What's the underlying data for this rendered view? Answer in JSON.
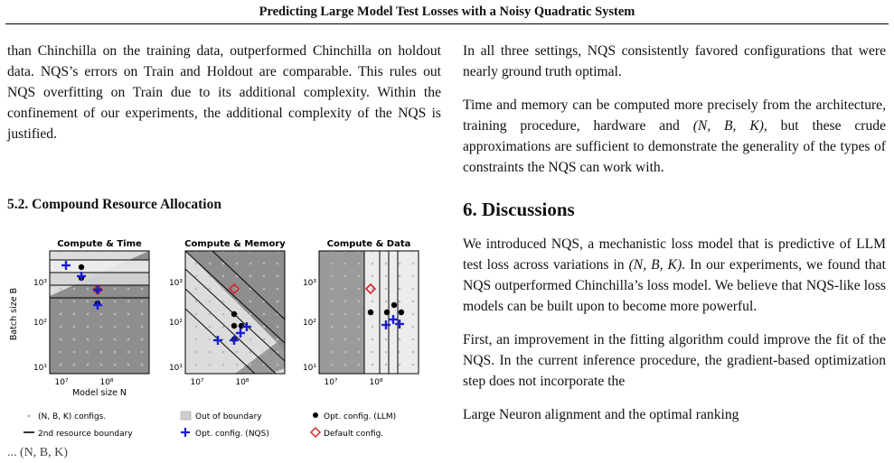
{
  "header": {
    "title": "Predicting Large Model Test Losses with a Noisy Quadratic System"
  },
  "left_column": {
    "paragraph_1": "than Chinchilla on the training data, outperformed Chinchilla on holdout data. NQS’s errors on Train and Holdout are comparable. This rules out NQS overfitting on Train due to its additional complexity. Within the confinement of our experiments, the additional complexity of the NQS is justified.",
    "section_heading": "5.2. Compound Resource Allocation"
  },
  "figure": {
    "panels": [
      {
        "title": "Compute & Time"
      },
      {
        "title": "Compute & Memory"
      },
      {
        "title": "Compute & Data"
      }
    ],
    "ylabel": "Batch size B",
    "xlabel": "Model size N",
    "y_ticks": [
      "10³",
      "10²",
      "10¹"
    ],
    "x_ticks": [
      "10⁷",
      "10⁸"
    ],
    "legend": [
      {
        "label": "(N, B, K) configs.",
        "marker": "dot-gray"
      },
      {
        "label": "Out of boundary",
        "marker": "gray-square"
      },
      {
        "label": "Opt. config. (LLM)",
        "marker": "black-dot"
      },
      {
        "label": "2nd resource boundary",
        "marker": "black-line"
      },
      {
        "label": "Opt. config. (NQS)",
        "marker": "blue-plus"
      },
      {
        "label": "Default config.",
        "marker": "red-diamond"
      }
    ],
    "colors": {
      "nqs": "#1c1cd6",
      "default": "#d62728",
      "llm": "#000000",
      "grid_dot": "#bbbbbb",
      "shade": "#9a9a9a"
    },
    "caption_fragment": "... (N, B, K)"
  },
  "right_column": {
    "paragraph_1": "In all three settings, NQS consistently favored configurations that were nearly ground truth optimal.",
    "paragraph_2_pre": "Time and memory can be computed more precisely from the architecture, training procedure, hardware and ",
    "paragraph_2_math": "(N, B, K)",
    "paragraph_2_post": ", but these crude approximations are sufficient to demonstrate the generality of the types of constraints the NQS can work with.",
    "section_heading": "6. Discussions",
    "paragraph_3_pre": "We introduced NQS, a mechanistic loss model that is predictive of LLM test loss across variations in ",
    "paragraph_3_math": "(N, B, K)",
    "paragraph_3_post": ". In our experiments, we found that NQS outperformed Chinchilla’s loss model. We believe that NQS-like loss models can be built upon to become more powerful.",
    "paragraph_4": "First, an improvement in the fitting algorithm could improve the fit of the NQS. In the current inference procedure, the gradient-based optimization step does not incorporate the",
    "paragraph_5_partial": "Large Neuron alignment and the optimal ranking"
  }
}
